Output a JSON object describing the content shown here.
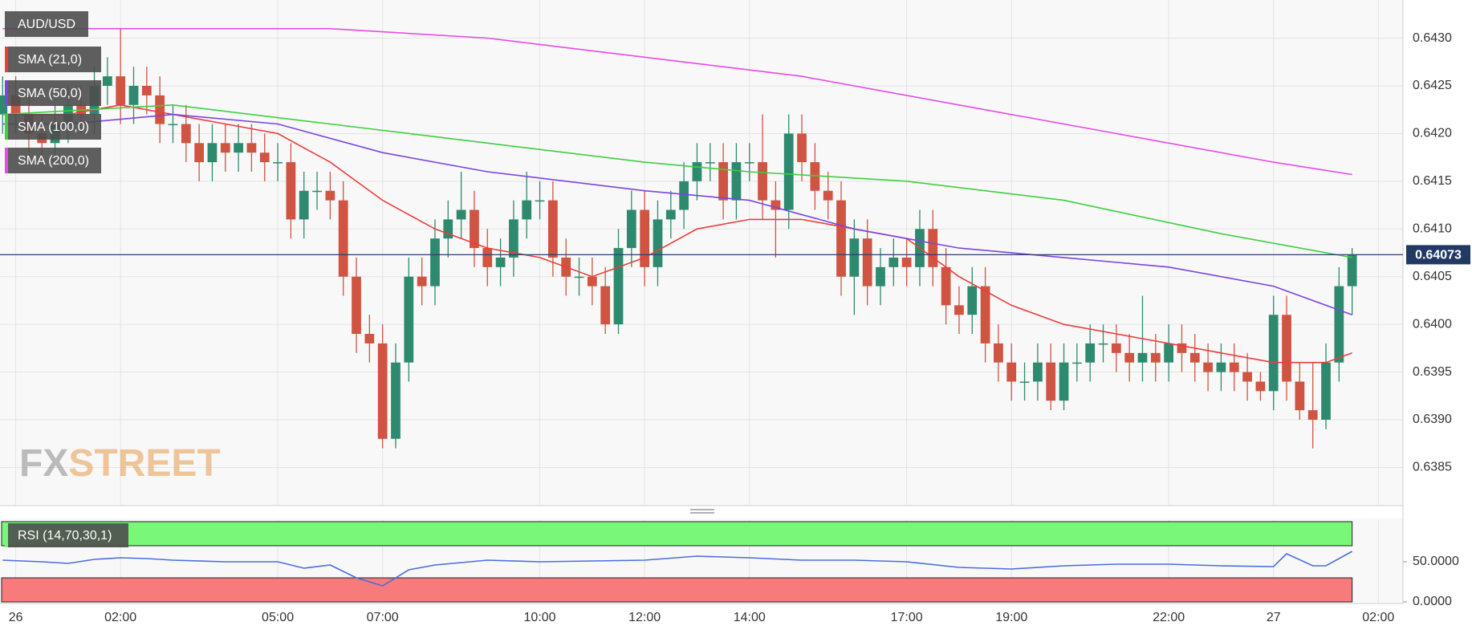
{
  "chart_data": [
    {
      "type": "candlestick",
      "title": "AUD/USD",
      "x": [
        -0.25,
        0,
        0.25,
        0.5,
        0.75,
        1,
        1.25,
        1.5,
        1.75,
        2,
        2.25,
        2.5,
        2.75,
        3,
        3.25,
        3.5,
        3.75,
        4,
        4.25,
        4.5,
        4.75,
        5,
        5.25,
        5.5,
        5.75,
        6,
        6.25,
        6.5,
        6.75,
        7,
        7.25,
        7.5,
        7.75,
        8,
        8.25,
        8.5,
        8.75,
        9,
        9.25,
        9.5,
        9.75,
        10,
        10.25,
        10.5,
        10.75,
        11,
        11.25,
        11.5,
        11.75,
        12,
        12.25,
        12.5,
        12.75,
        13,
        13.25,
        13.5,
        13.75,
        14,
        14.25,
        14.5,
        14.75,
        15,
        15.25,
        15.5,
        15.75,
        16,
        16.25,
        16.5,
        16.75,
        17,
        17.25,
        17.5,
        17.75,
        18,
        18.25,
        18.5,
        18.75,
        19,
        19.25,
        19.5,
        19.75,
        20,
        20.25,
        20.5,
        20.75,
        21,
        21.25,
        21.5,
        21.75,
        22,
        22.25,
        22.5,
        22.75,
        23,
        23.25,
        23.5,
        23.75,
        24,
        24.25,
        24.5,
        24.75,
        25,
        25.25,
        25.5
      ],
      "open": [
        0.6422,
        0.6424,
        0.6422,
        0.642,
        0.6419,
        0.6421,
        0.6423,
        0.6422,
        0.6425,
        0.6426,
        0.6423,
        0.6425,
        0.6424,
        0.6421,
        0.6421,
        0.6419,
        0.6417,
        0.6419,
        0.6418,
        0.6419,
        0.6418,
        0.6417,
        0.6417,
        0.6411,
        0.6414,
        0.6414,
        0.6413,
        0.6405,
        0.6399,
        0.6398,
        0.6388,
        0.6396,
        0.6405,
        0.6404,
        0.6409,
        0.6411,
        0.6412,
        0.6408,
        0.6406,
        0.6407,
        0.6411,
        0.6413,
        0.6413,
        0.6407,
        0.6405,
        0.6405,
        0.6404,
        0.64,
        0.6408,
        0.6412,
        0.6406,
        0.6411,
        0.6412,
        0.6415,
        0.6417,
        0.6417,
        0.6413,
        0.6417,
        0.6417,
        0.6413,
        0.6412,
        0.642,
        0.6417,
        0.6414,
        0.6413,
        0.6405,
        0.6409,
        0.6404,
        0.6406,
        0.6407,
        0.6406,
        0.641,
        0.6406,
        0.6402,
        0.6401,
        0.6404,
        0.6398,
        0.6396,
        0.6394,
        0.6394,
        0.6396,
        0.6392,
        0.6396,
        0.6396,
        0.6398,
        0.6398,
        0.6397,
        0.6396,
        0.6397,
        0.6396,
        0.6398,
        0.6397,
        0.6396,
        0.6395,
        0.6396,
        0.6395,
        0.6394,
        0.6393,
        0.6401,
        0.6394,
        0.6391,
        0.639,
        0.6396,
        0.6404
      ],
      "high": [
        0.6426,
        0.6426,
        0.6424,
        0.6422,
        0.6423,
        0.6425,
        0.6425,
        0.6427,
        0.6428,
        0.6431,
        0.6427,
        0.6427,
        0.6426,
        0.6423,
        0.6423,
        0.6421,
        0.6421,
        0.6421,
        0.6421,
        0.6421,
        0.642,
        0.6419,
        0.6419,
        0.6416,
        0.6416,
        0.6416,
        0.6415,
        0.6407,
        0.6401,
        0.64,
        0.6398,
        0.6407,
        0.6407,
        0.6411,
        0.6413,
        0.6416,
        0.6414,
        0.641,
        0.6409,
        0.6413,
        0.6416,
        0.6415,
        0.6415,
        0.6409,
        0.6407,
        0.6407,
        0.6406,
        0.641,
        0.6414,
        0.6414,
        0.6413,
        0.6414,
        0.6417,
        0.6419,
        0.6419,
        0.6419,
        0.6419,
        0.6419,
        0.6422,
        0.6415,
        0.6422,
        0.6422,
        0.6419,
        0.6416,
        0.6415,
        0.6411,
        0.6411,
        0.6408,
        0.6409,
        0.6409,
        0.6412,
        0.6412,
        0.6408,
        0.6404,
        0.6406,
        0.6406,
        0.64,
        0.6398,
        0.6396,
        0.6398,
        0.6398,
        0.6398,
        0.6398,
        0.64,
        0.64,
        0.64,
        0.6399,
        0.6403,
        0.6399,
        0.64,
        0.64,
        0.6399,
        0.6398,
        0.6398,
        0.6398,
        0.6397,
        0.6395,
        0.6403,
        0.6403,
        0.6396,
        0.6396,
        0.6398,
        0.6406,
        0.6408
      ],
      "low": [
        0.642,
        0.642,
        0.6418,
        0.6417,
        0.6417,
        0.6419,
        0.642,
        0.642,
        0.6423,
        0.6421,
        0.6421,
        0.6422,
        0.6419,
        0.6419,
        0.6417,
        0.6415,
        0.6415,
        0.6416,
        0.6416,
        0.6416,
        0.6415,
        0.6415,
        0.6409,
        0.6409,
        0.6412,
        0.6411,
        0.6403,
        0.6397,
        0.6396,
        0.6387,
        0.6387,
        0.6394,
        0.6402,
        0.6402,
        0.6407,
        0.6409,
        0.6406,
        0.6404,
        0.6404,
        0.6405,
        0.6409,
        0.6411,
        0.6405,
        0.6403,
        0.6403,
        0.6402,
        0.6399,
        0.6399,
        0.6406,
        0.6404,
        0.6404,
        0.6409,
        0.641,
        0.6413,
        0.6415,
        0.6411,
        0.6411,
        0.6415,
        0.6411,
        0.6407,
        0.641,
        0.6415,
        0.6412,
        0.6411,
        0.6403,
        0.6401,
        0.6402,
        0.6402,
        0.6404,
        0.6404,
        0.6404,
        0.6404,
        0.64,
        0.6399,
        0.6399,
        0.6396,
        0.6394,
        0.6392,
        0.6392,
        0.6392,
        0.6391,
        0.6391,
        0.6394,
        0.6394,
        0.6396,
        0.6395,
        0.6394,
        0.6394,
        0.6394,
        0.6394,
        0.6395,
        0.6394,
        0.6393,
        0.6393,
        0.6393,
        0.6392,
        0.6392,
        0.6391,
        0.6392,
        0.639,
        0.6387,
        0.6389,
        0.6394,
        0.6401
      ],
      "close": [
        0.6424,
        0.6422,
        0.642,
        0.6419,
        0.6421,
        0.6423,
        0.6422,
        0.6425,
        0.6426,
        0.6423,
        0.6425,
        0.6424,
        0.6421,
        0.6421,
        0.6419,
        0.6417,
        0.6419,
        0.6418,
        0.6419,
        0.6418,
        0.6417,
        0.6417,
        0.6411,
        0.6414,
        0.6414,
        0.6413,
        0.6405,
        0.6399,
        0.6398,
        0.6388,
        0.6396,
        0.6405,
        0.6404,
        0.6409,
        0.6411,
        0.6412,
        0.6408,
        0.6406,
        0.6407,
        0.6411,
        0.6413,
        0.6413,
        0.6407,
        0.6405,
        0.6405,
        0.6404,
        0.64,
        0.6408,
        0.6412,
        0.6406,
        0.6411,
        0.6412,
        0.6415,
        0.6417,
        0.6417,
        0.6413,
        0.6417,
        0.6417,
        0.6413,
        0.6412,
        0.642,
        0.6417,
        0.6414,
        0.6413,
        0.6405,
        0.6409,
        0.6404,
        0.6406,
        0.6407,
        0.6406,
        0.641,
        0.6406,
        0.6402,
        0.6401,
        0.6404,
        0.6398,
        0.6396,
        0.6394,
        0.6394,
        0.6396,
        0.6392,
        0.6396,
        0.6396,
        0.6398,
        0.6398,
        0.6397,
        0.6396,
        0.6397,
        0.6396,
        0.6398,
        0.6397,
        0.6396,
        0.6395,
        0.6396,
        0.6395,
        0.6394,
        0.6393,
        0.6401,
        0.6394,
        0.6391,
        0.639,
        0.6396,
        0.6404,
        0.64073
      ],
      "up_color": "#2e8a6f",
      "down_color": "#cf5442",
      "overlays": [
        {
          "name": "SMA (21,0)",
          "color": "#ee3b3b",
          "x": [
            -0.25,
            1,
            2,
            3,
            4,
            5,
            6,
            7,
            8,
            9,
            10,
            11,
            12,
            13,
            14,
            15,
            16,
            17,
            18,
            19,
            20,
            21,
            22,
            23,
            24,
            25,
            25.5
          ],
          "values": [
            0.6422,
            0.6422,
            0.6423,
            0.6422,
            0.6421,
            0.642,
            0.6417,
            0.6413,
            0.641,
            0.6408,
            0.6407,
            0.6405,
            0.6407,
            0.641,
            0.6411,
            0.6411,
            0.641,
            0.6409,
            0.6405,
            0.6402,
            0.64,
            0.6399,
            0.6398,
            0.6397,
            0.6396,
            0.6396,
            0.6397
          ]
        },
        {
          "name": "SMA (50,0)",
          "color": "#7a45e0",
          "x": [
            -0.25,
            1,
            3,
            5,
            7,
            9,
            12,
            14,
            16,
            18,
            20,
            22,
            24,
            25.5
          ],
          "values": [
            0.6421,
            0.6421,
            0.6422,
            0.6421,
            0.6418,
            0.6416,
            0.6414,
            0.6413,
            0.641,
            0.6408,
            0.6407,
            0.6406,
            0.6404,
            0.6401
          ]
        },
        {
          "name": "SMA (100,0)",
          "color": "#3fcf3f",
          "x": [
            -0.25,
            3,
            6,
            9,
            12,
            14,
            17,
            20,
            23,
            25.5
          ],
          "values": [
            0.6422,
            0.6423,
            0.6421,
            0.6419,
            0.6417,
            0.6416,
            0.6415,
            0.6413,
            0.64095,
            0.6407
          ]
        },
        {
          "name": "SMA (200,0)",
          "color": "#e84ae8",
          "x": [
            -0.25,
            3,
            6,
            9,
            12,
            15,
            18,
            21,
            24,
            25.5
          ],
          "values": [
            0.6431,
            0.6431,
            0.6431,
            0.643,
            0.6428,
            0.6426,
            0.6423,
            0.642,
            0.6417,
            0.64157
          ]
        }
      ],
      "current_price": {
        "value": 0.64073,
        "label": "0.64073"
      },
      "watermark": {
        "prefix": "FX",
        "suffix": "STREET"
      },
      "xlim": [
        -0.3,
        26.47
      ],
      "ylim": [
        0.6381,
        0.6434
      ],
      "xticks": [
        {
          "value": 0,
          "label": "26"
        },
        {
          "value": 2,
          "label": "02:00"
        },
        {
          "value": 5,
          "label": "05:00"
        },
        {
          "value": 7,
          "label": "07:00"
        },
        {
          "value": 10,
          "label": "10:00"
        },
        {
          "value": 12,
          "label": "12:00"
        },
        {
          "value": 14,
          "label": "14:00"
        },
        {
          "value": 17,
          "label": "17:00"
        },
        {
          "value": 19,
          "label": "19:00"
        },
        {
          "value": 22,
          "label": "22:00"
        },
        {
          "value": 24,
          "label": "27"
        },
        {
          "value": 26,
          "label": "02:00"
        }
      ],
      "yticks": [
        {
          "value": 0.6385,
          "label": "0.6385"
        },
        {
          "value": 0.639,
          "label": "0.6390"
        },
        {
          "value": 0.6395,
          "label": "0.6395"
        },
        {
          "value": 0.64,
          "label": "0.6400"
        },
        {
          "value": 0.6405,
          "label": "0.6405"
        },
        {
          "value": 0.641,
          "label": "0.6410"
        },
        {
          "value": 0.6415,
          "label": "0.6415"
        },
        {
          "value": 0.642,
          "label": "0.6420"
        },
        {
          "value": 0.6425,
          "label": "0.6425"
        },
        {
          "value": 0.643,
          "label": "0.6430"
        }
      ],
      "grid": true
    },
    {
      "type": "line",
      "name": "RSI (14,70,30,1)",
      "color": "#4a6de0",
      "x": [
        -0.25,
        0.5,
        1,
        1.5,
        2,
        2.5,
        3,
        4,
        5,
        5.5,
        6,
        6.5,
        7,
        7.5,
        8,
        9,
        10,
        11,
        12,
        13,
        14,
        15,
        16,
        17,
        18,
        19,
        20,
        21,
        22,
        23,
        24,
        24.25,
        24.75,
        25,
        25.5
      ],
      "values": [
        52,
        50,
        48,
        53,
        55,
        54,
        52,
        50,
        50,
        42,
        46,
        30,
        20,
        40,
        46,
        52,
        50,
        51,
        52,
        57,
        55,
        52,
        52,
        50,
        43,
        41,
        45,
        47,
        47,
        45,
        44,
        60,
        45,
        45,
        63
      ],
      "bands": [
        {
          "from": 70,
          "to": 100,
          "color": "#78f778"
        },
        {
          "from": 0,
          "to": 30,
          "color": "#f77b7b"
        }
      ],
      "ylim": [
        -2,
        102
      ],
      "yticks": [
        {
          "value": 0,
          "label": "0.0000"
        },
        {
          "value": 50,
          "label": "50.0000"
        }
      ]
    }
  ]
}
